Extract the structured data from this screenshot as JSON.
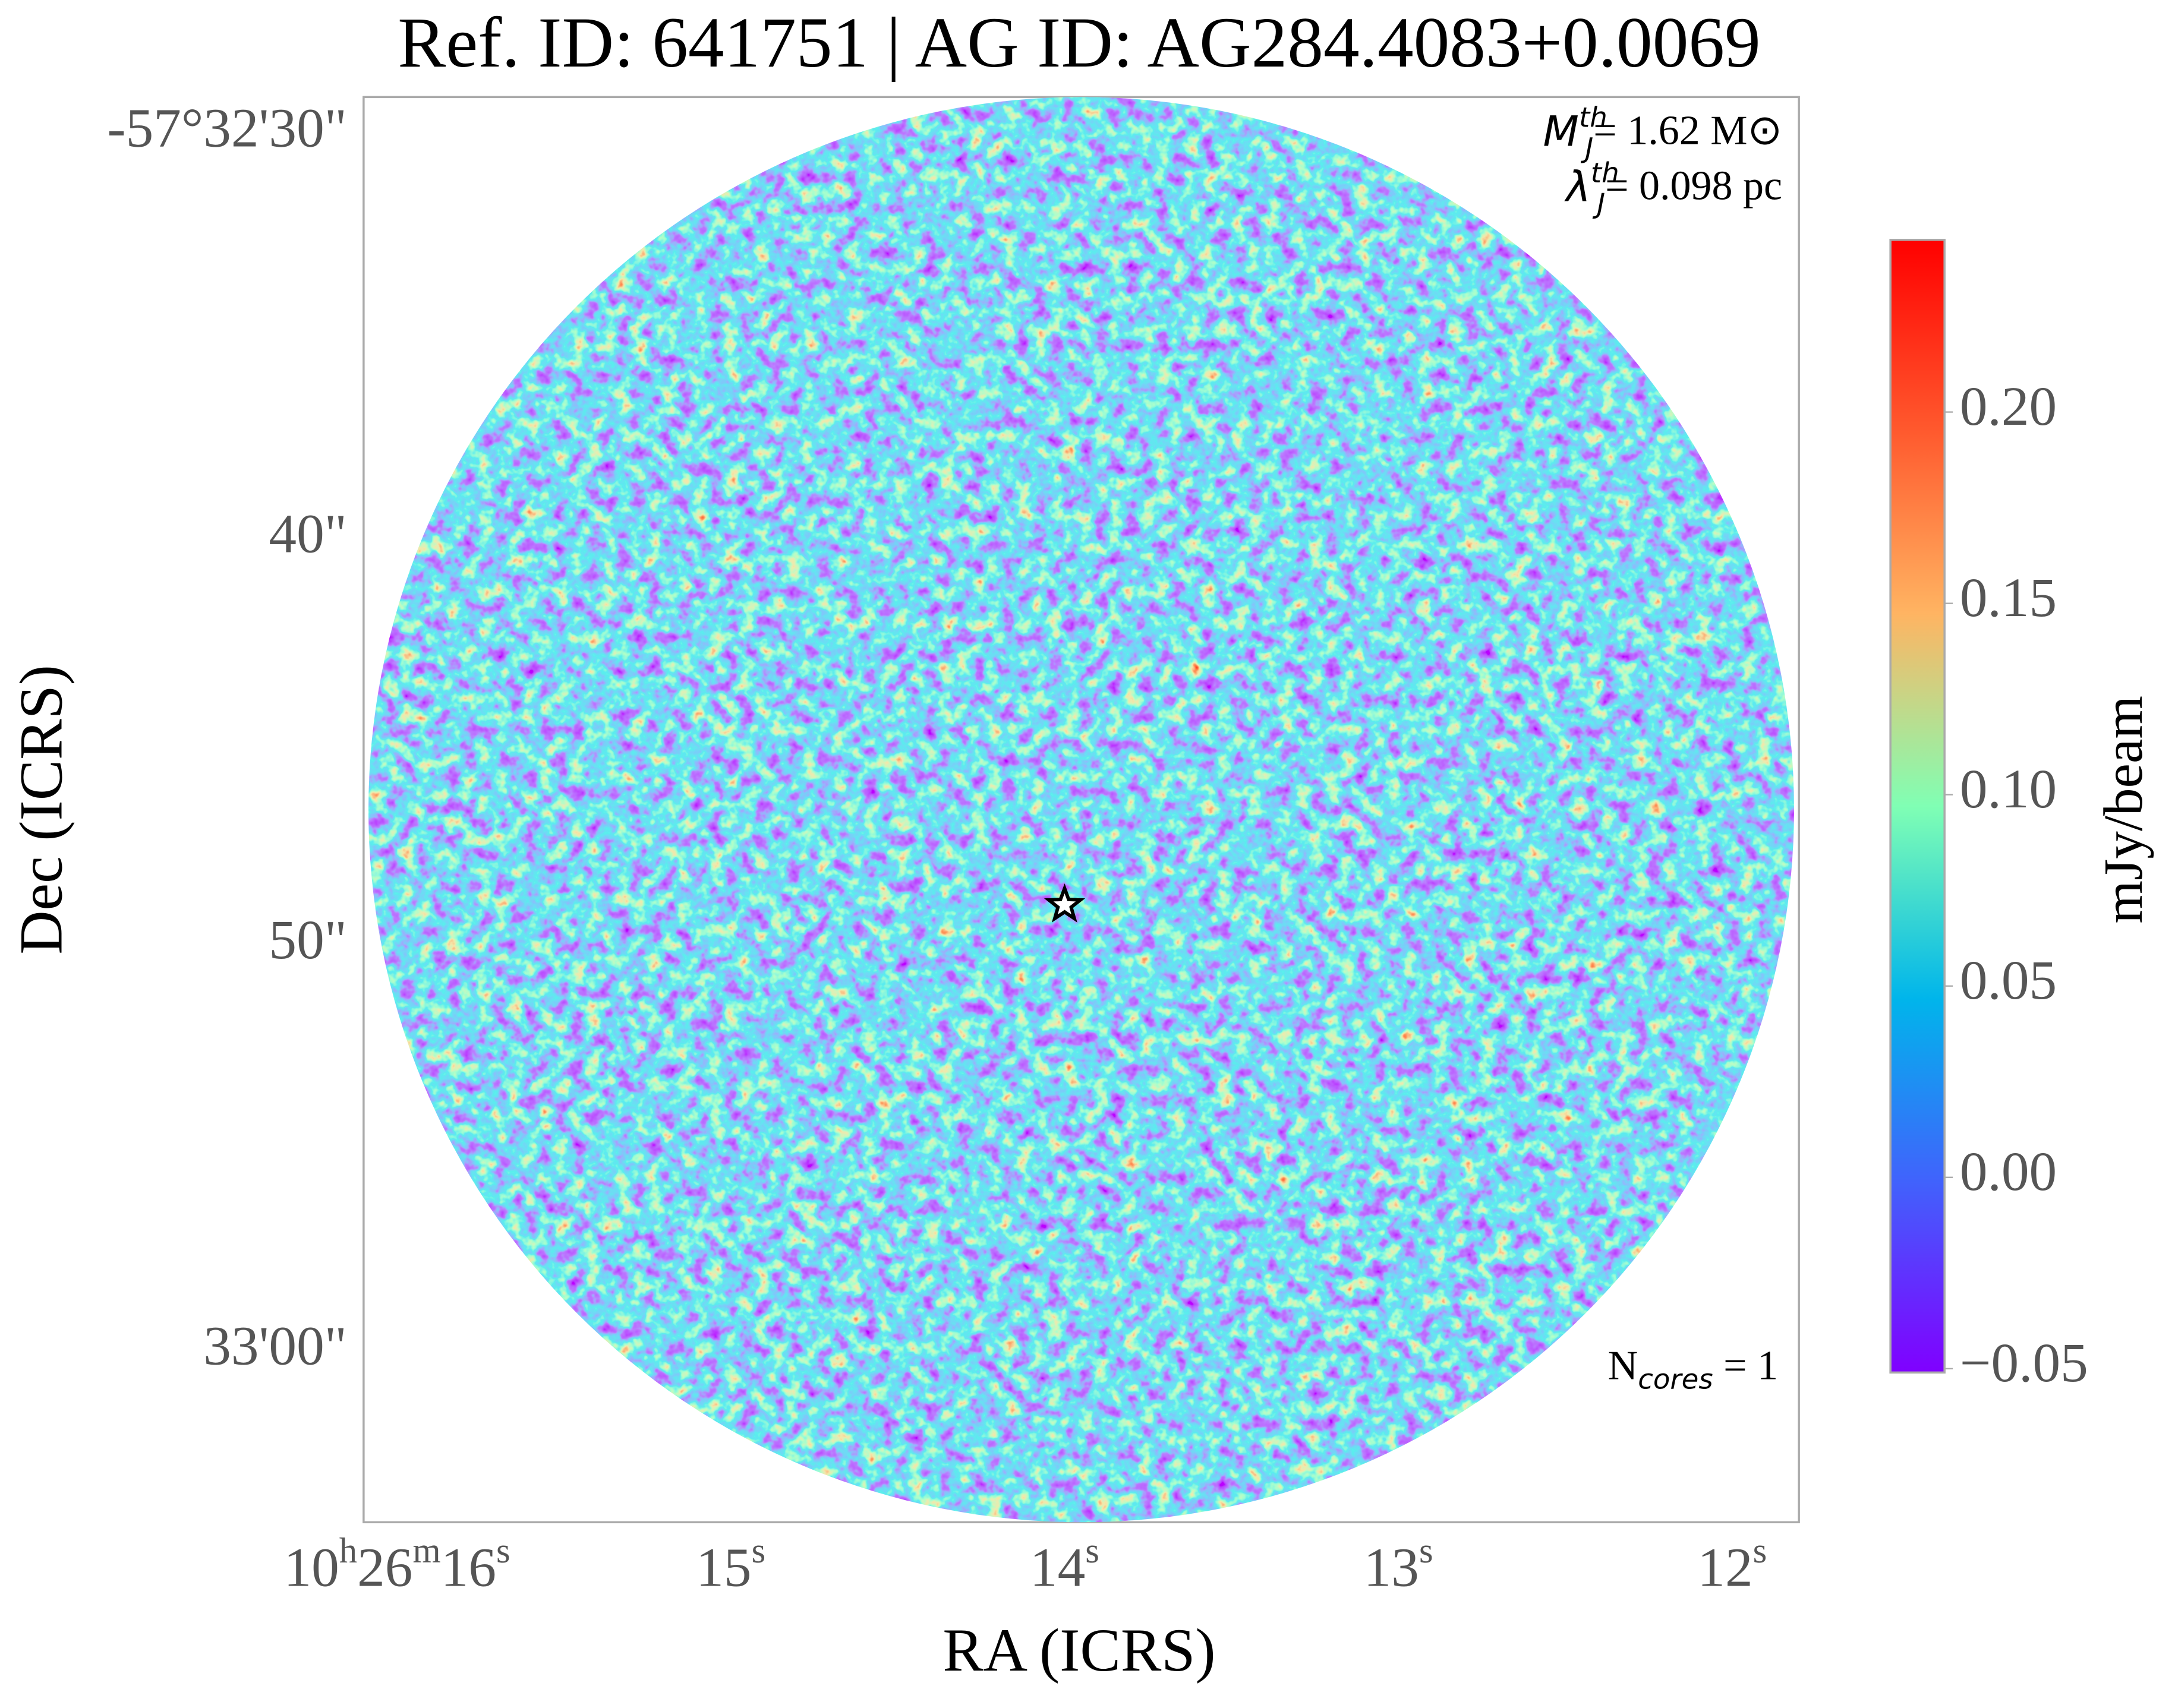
{
  "chart_data": {
    "type": "image",
    "title": "Ref. ID: 641751 | AG ID: AG284.4083+0.0069",
    "xlabel": "RA (ICRS)",
    "ylabel": "Dec (ICRS)",
    "xlim": [
      16.1,
      11.8
    ],
    "xticks": [
      {
        "value": 16,
        "label": "10h26m16s"
      },
      {
        "value": 15,
        "label": "15s"
      },
      {
        "value": 14,
        "label": "14s"
      },
      {
        "value": 13,
        "label": "13s"
      },
      {
        "value": 12,
        "label": "12s"
      }
    ],
    "ylim": [
      64.2,
      29.1
    ],
    "yticks": [
      {
        "value": 30,
        "label": "-57°32'30\""
      },
      {
        "value": 40,
        "label": "40\""
      },
      {
        "value": 50,
        "label": "50\""
      },
      {
        "value": 60,
        "label": "33'00\""
      }
    ],
    "colorbar": {
      "label": "mJy/beam",
      "clim": [
        -0.051,
        0.245
      ],
      "ticks": [
        {
          "value": -0.05,
          "label": "−0.05"
        },
        {
          "value": 0,
          "label": "0.00"
        },
        0.05,
        {
          "value": 0.1,
          "label": "0.10"
        },
        0.15,
        {
          "value": 0.2,
          "label": "0.20"
        }
      ]
    },
    "annotations": [
      {
        "symbol": "M",
        "sub": "J",
        "sup": "th",
        "text": "= 1.62 M⊙"
      },
      {
        "symbol": "λ",
        "sub": "J",
        "sup": "th",
        "text": "= 0.098 pc"
      },
      {
        "symbol": "N",
        "sub": "cores",
        "text": " = 1"
      }
    ],
    "marker": {
      "x": 14.0,
      "y": 49.0
    }
  }
}
